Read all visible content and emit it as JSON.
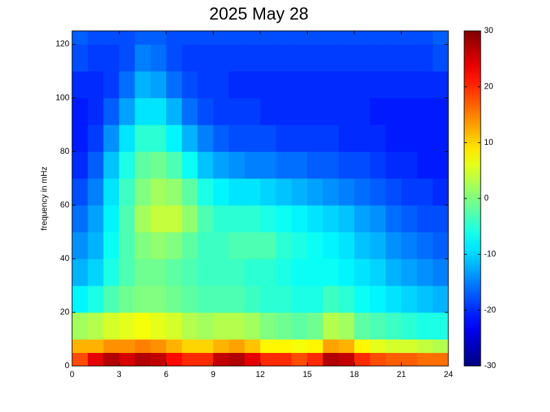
{
  "chart_data": {
    "type": "heatmap",
    "title": "2025 May 28",
    "y_label": "frequency in mHz",
    "xlim": [
      0,
      24
    ],
    "ylim": [
      0,
      125
    ],
    "xticks": [
      0,
      3,
      6,
      9,
      12,
      15,
      18,
      21,
      24
    ],
    "yticks": [
      0,
      20,
      40,
      60,
      80,
      100,
      120
    ],
    "colorlim": [
      -30,
      30
    ],
    "colorticks": [
      -30,
      -20,
      -10,
      0,
      10,
      20,
      30
    ],
    "colormap": "jet",
    "xbins": [
      0,
      1,
      2,
      3,
      4,
      5,
      6,
      7,
      8,
      9,
      10,
      11,
      12,
      13,
      14,
      15,
      16,
      17,
      18,
      19,
      20,
      21,
      22,
      23,
      24
    ],
    "ybins": [
      0,
      5,
      10,
      20,
      30,
      40,
      50,
      60,
      70,
      80,
      90,
      100,
      110,
      120,
      125
    ],
    "values": [
      [
        18,
        24,
        27,
        25,
        27,
        26,
        22,
        20,
        20,
        26,
        27,
        24,
        20,
        20,
        18,
        20,
        27,
        26,
        20,
        18,
        17,
        17,
        16,
        16
      ],
      [
        12,
        12,
        14,
        14,
        15,
        14,
        12,
        10,
        10,
        12,
        13,
        11,
        8,
        8,
        7,
        8,
        13,
        12,
        8,
        6,
        5,
        5,
        4,
        3
      ],
      [
        2,
        3,
        5,
        6,
        7,
        6,
        5,
        3,
        2,
        3,
        3,
        2,
        0,
        -1,
        -2,
        -1,
        3,
        2,
        -2,
        -3,
        -4,
        -5,
        -6,
        -6
      ],
      [
        -8,
        -6,
        -3,
        -1,
        0,
        0,
        -1,
        -2,
        -3,
        -3,
        -3,
        -4,
        -5,
        -5,
        -6,
        -6,
        -4,
        -5,
        -7,
        -8,
        -9,
        -10,
        -11,
        -12
      ],
      [
        -12,
        -10,
        -6,
        -3,
        -1,
        -1,
        -2,
        -3,
        -4,
        -4,
        -4,
        -5,
        -5,
        -6,
        -7,
        -7,
        -7,
        -8,
        -9,
        -10,
        -12,
        -13,
        -14,
        -15
      ],
      [
        -14,
        -12,
        -7,
        -3,
        0,
        1,
        0,
        -2,
        -4,
        -4,
        -3,
        -3,
        -3,
        -5,
        -6,
        -7,
        -8,
        -9,
        -11,
        -12,
        -14,
        -15,
        -16,
        -17
      ],
      [
        -16,
        -13,
        -8,
        -3,
        2,
        4,
        4,
        1,
        -3,
        -5,
        -5,
        -5,
        -6,
        -7,
        -8,
        -9,
        -10,
        -11,
        -13,
        -14,
        -16,
        -17,
        -18,
        -18
      ],
      [
        -18,
        -15,
        -9,
        -4,
        0,
        2,
        1,
        -2,
        -6,
        -8,
        -9,
        -9,
        -10,
        -11,
        -12,
        -13,
        -14,
        -15,
        -16,
        -17,
        -18,
        -19,
        -19,
        -20
      ],
      [
        -20,
        -17,
        -11,
        -6,
        -2,
        -1,
        -3,
        -7,
        -11,
        -13,
        -14,
        -15,
        -15,
        -16,
        -16,
        -17,
        -17,
        -18,
        -18,
        -19,
        -20,
        -20,
        -21,
        -21
      ],
      [
        -21,
        -19,
        -14,
        -9,
        -5,
        -5,
        -8,
        -12,
        -15,
        -17,
        -18,
        -18,
        -18,
        -19,
        -19,
        -19,
        -19,
        -20,
        -20,
        -20,
        -21,
        -21,
        -21,
        -21
      ],
      [
        -21,
        -20,
        -17,
        -13,
        -9,
        -9,
        -12,
        -16,
        -18,
        -19,
        -19,
        -19,
        -20,
        -20,
        -20,
        -20,
        -20,
        -20,
        -20,
        -21,
        -21,
        -21,
        -21,
        -21
      ],
      [
        -20,
        -20,
        -19,
        -16,
        -12,
        -13,
        -16,
        -18,
        -19,
        -19,
        -20,
        -20,
        -20,
        -20,
        -20,
        -20,
        -20,
        -20,
        -20,
        -20,
        -20,
        -20,
        -20,
        -20
      ],
      [
        -18,
        -19,
        -19,
        -18,
        -15,
        -16,
        -18,
        -19,
        -19,
        -19,
        -19,
        -19,
        -19,
        -19,
        -19,
        -19,
        -19,
        -19,
        -19,
        -19,
        -19,
        -19,
        -19,
        -18
      ],
      [
        -17,
        -18,
        -18,
        -18,
        -17,
        -17,
        -18,
        -18,
        -18,
        -18,
        -18,
        -18,
        -18,
        -18,
        -18,
        -18,
        -18,
        -18,
        -18,
        -18,
        -18,
        -18,
        -18,
        -17
      ]
    ]
  }
}
